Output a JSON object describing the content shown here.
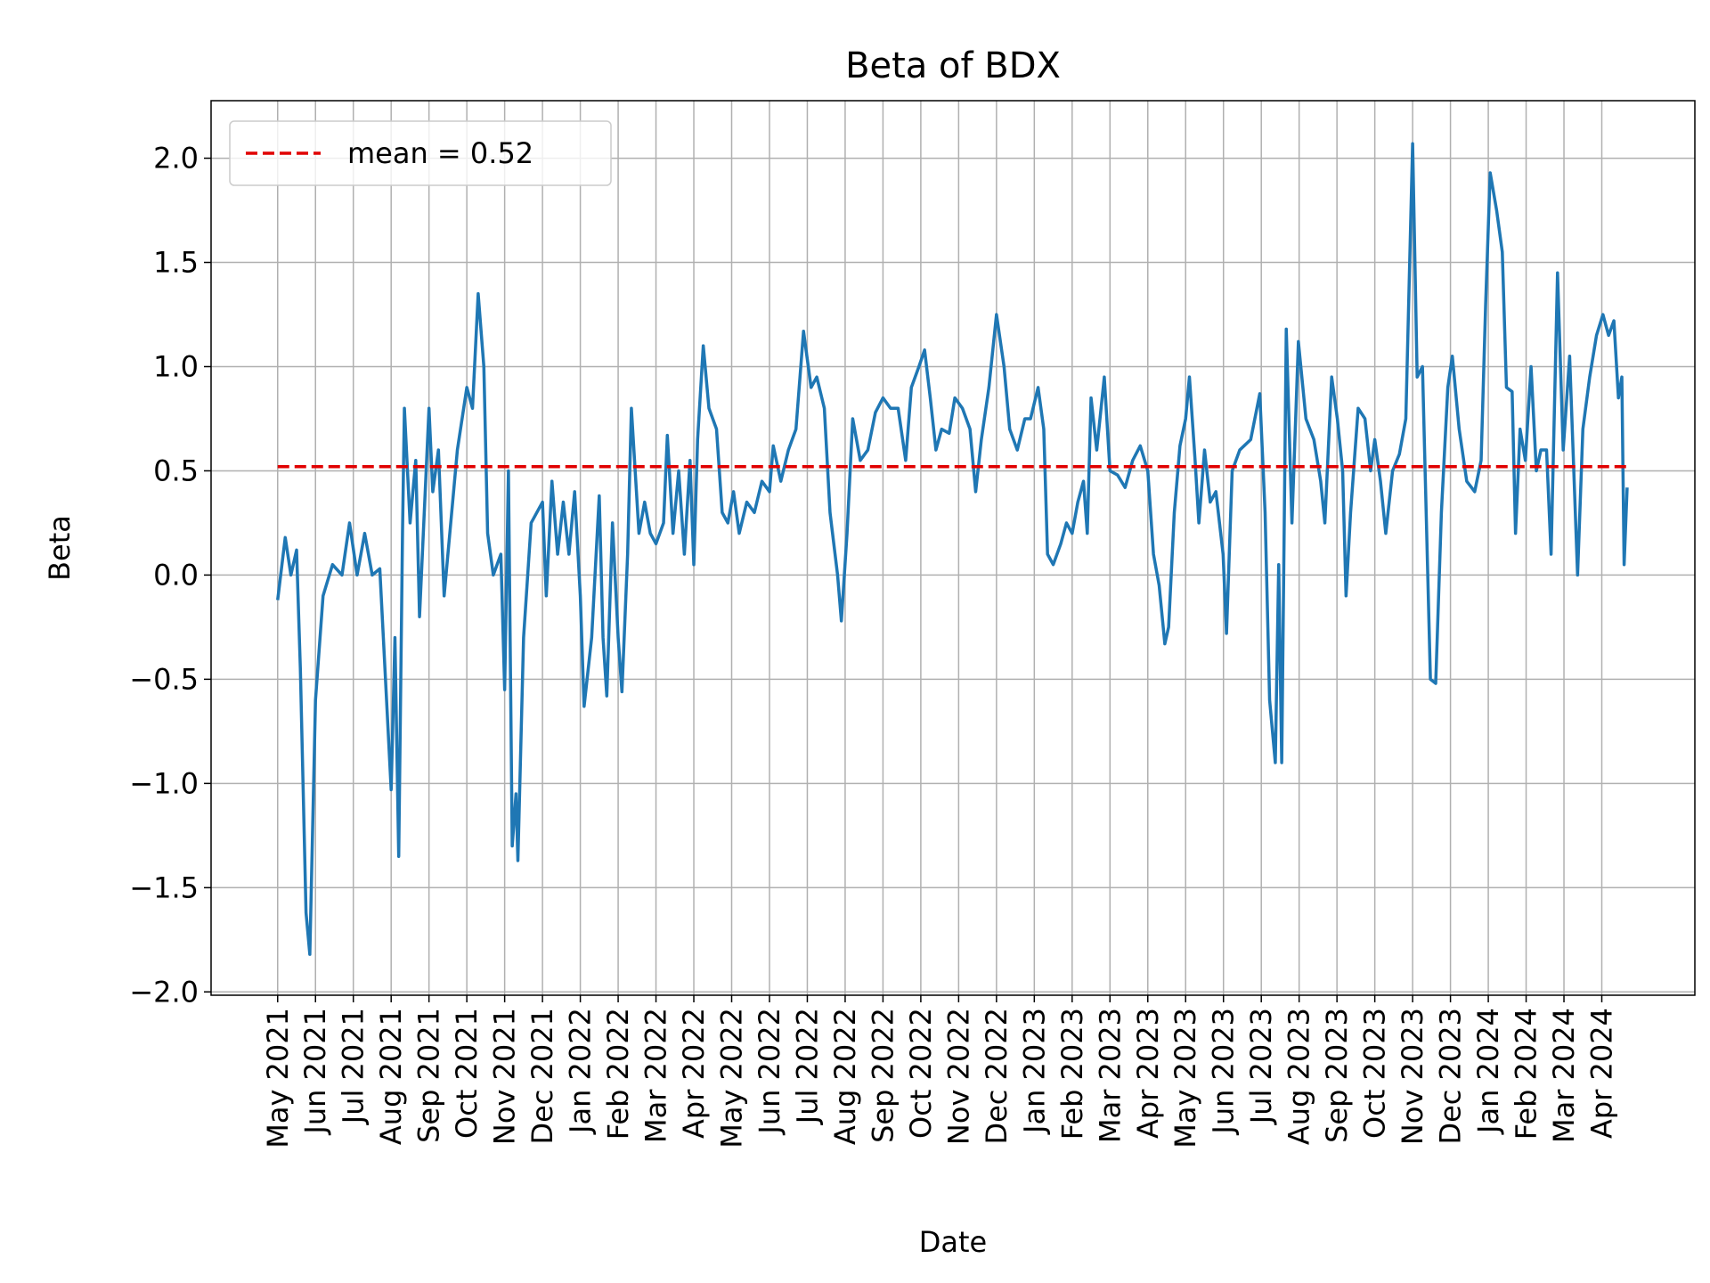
{
  "chart_data": {
    "type": "line",
    "title": "Beta of BDX",
    "xlabel": "Date",
    "ylabel": "Beta",
    "x": [
      0,
      0.2,
      0.35,
      0.5,
      0.6,
      0.75,
      0.85,
      1.0,
      1.2,
      1.45,
      1.7,
      1.9,
      2.1,
      2.3,
      2.5,
      2.7,
      2.85,
      3.0,
      3.1,
      3.2,
      3.3,
      3.35,
      3.5,
      3.65,
      3.75,
      3.85,
      4.0,
      4.1,
      4.25,
      4.4,
      4.55,
      4.75,
      5.0,
      5.15,
      5.3,
      5.45,
      5.55,
      5.7,
      5.9,
      6.0,
      6.1,
      6.2,
      6.3,
      6.35,
      6.5,
      6.7,
      7.0,
      7.1,
      7.25,
      7.4,
      7.55,
      7.7,
      7.85,
      8.0,
      8.1,
      8.3,
      8.5,
      8.6,
      8.7,
      8.85,
      9.0,
      9.1,
      9.25,
      9.35,
      9.55,
      9.7,
      9.85,
      10.0,
      10.2,
      10.3,
      10.45,
      10.6,
      10.75,
      10.9,
      11.0,
      11.1,
      11.25,
      11.4,
      11.6,
      11.75,
      11.9,
      12.05,
      12.2,
      12.4,
      12.6,
      12.8,
      13.0,
      13.1,
      13.3,
      13.5,
      13.7,
      13.9,
      14.1,
      14.25,
      14.45,
      14.6,
      14.8,
      14.9,
      15.05,
      15.2,
      15.4,
      15.6,
      15.8,
      16.0,
      16.2,
      16.4,
      16.6,
      16.75,
      16.95,
      17.1,
      17.25,
      17.4,
      17.55,
      17.75,
      17.9,
      18.1,
      18.3,
      18.45,
      18.6,
      18.8,
      19.0,
      19.2,
      19.35,
      19.55,
      19.75,
      19.9,
      20.1,
      20.25,
      20.35,
      20.5,
      20.7,
      20.85,
      21.0,
      21.15,
      21.3,
      21.4,
      21.5,
      21.65,
      21.85,
      22.0,
      22.2,
      22.4,
      22.6,
      22.8,
      23.0,
      23.15,
      23.3,
      23.45,
      23.55,
      23.7,
      23.85,
      24.0,
      24.1,
      24.25,
      24.35,
      24.5,
      24.65,
      24.8,
      24.99,
      25.08,
      25.23,
      25.43,
      25.72,
      25.96,
      26.1,
      26.22,
      26.37,
      26.46,
      26.54,
      26.66,
      26.81,
      26.98,
      27.18,
      27.39,
      27.57,
      27.68,
      27.86,
      28.01,
      28.15,
      28.24,
      28.36,
      28.56,
      28.74,
      28.89,
      29.0,
      29.15,
      29.29,
      29.47,
      29.65,
      29.82,
      30.0,
      30.12,
      30.26,
      30.47,
      30.61,
      30.76,
      30.93,
      31.05,
      31.23,
      31.43,
      31.64,
      31.81,
      31.93,
      32.05,
      32.22,
      32.37,
      32.48,
      32.63,
      32.72,
      32.84,
      32.98,
      33.13,
      33.27,
      33.39,
      33.54,
      33.66,
      33.83,
      33.98,
      34.15,
      34.36,
      34.5,
      34.68,
      34.86,
      35.03,
      35.18,
      35.32,
      35.44,
      35.53,
      35.59,
      35.67
    ],
    "values": [
      -0.12,
      0.18,
      0.0,
      0.12,
      -0.45,
      -1.62,
      -1.82,
      -0.6,
      -0.1,
      0.05,
      0.0,
      0.25,
      0.0,
      0.2,
      0.0,
      0.03,
      -0.5,
      -1.03,
      -0.3,
      -1.35,
      0.2,
      0.8,
      0.25,
      0.55,
      -0.2,
      0.2,
      0.8,
      0.4,
      0.6,
      -0.1,
      0.2,
      0.6,
      0.9,
      0.8,
      1.35,
      1.0,
      0.2,
      0.0,
      0.1,
      -0.55,
      0.5,
      -1.3,
      -1.05,
      -1.37,
      -0.3,
      0.25,
      0.35,
      -0.1,
      0.45,
      0.1,
      0.35,
      0.1,
      0.4,
      -0.1,
      -0.63,
      -0.3,
      0.38,
      -0.3,
      -0.58,
      0.25,
      -0.3,
      -0.56,
      0.1,
      0.8,
      0.2,
      0.35,
      0.2,
      0.15,
      0.25,
      0.67,
      0.2,
      0.5,
      0.1,
      0.55,
      0.05,
      0.65,
      1.1,
      0.8,
      0.7,
      0.3,
      0.25,
      0.4,
      0.2,
      0.35,
      0.3,
      0.45,
      0.4,
      0.62,
      0.45,
      0.6,
      0.7,
      1.17,
      0.9,
      0.95,
      0.8,
      0.3,
      0.0,
      -0.22,
      0.2,
      0.75,
      0.55,
      0.6,
      0.78,
      0.85,
      0.8,
      0.8,
      0.55,
      0.9,
      1.0,
      1.08,
      0.85,
      0.6,
      0.7,
      0.68,
      0.85,
      0.8,
      0.7,
      0.4,
      0.65,
      0.9,
      1.25,
      1.0,
      0.7,
      0.6,
      0.75,
      0.75,
      0.9,
      0.7,
      0.1,
      0.05,
      0.15,
      0.25,
      0.2,
      0.35,
      0.45,
      0.2,
      0.85,
      0.6,
      0.95,
      0.5,
      0.48,
      0.42,
      0.55,
      0.62,
      0.5,
      0.1,
      -0.05,
      -0.33,
      -0.25,
      0.3,
      0.62,
      0.75,
      0.95,
      0.55,
      0.25,
      0.6,
      0.35,
      0.4,
      0.1,
      -0.28,
      0.5,
      0.6,
      0.65,
      0.87,
      0.3,
      -0.6,
      -0.9,
      0.05,
      -0.9,
      1.18,
      0.25,
      1.12,
      0.75,
      0.65,
      0.45,
      0.25,
      0.95,
      0.75,
      0.5,
      -0.1,
      0.3,
      0.8,
      0.75,
      0.5,
      0.65,
      0.45,
      0.2,
      0.5,
      0.58,
      0.75,
      2.07,
      0.95,
      1.0,
      -0.5,
      -0.52,
      0.3,
      0.9,
      1.05,
      0.7,
      0.45,
      0.4,
      0.55,
      1.3,
      1.93,
      1.75,
      1.55,
      0.9,
      0.88,
      0.2,
      0.7,
      0.55,
      1.0,
      0.5,
      0.6,
      0.6,
      0.1,
      1.45,
      0.6,
      1.05,
      0.0,
      0.7,
      0.95,
      1.15,
      1.25,
      1.15,
      1.22,
      0.85,
      0.95,
      0.05,
      0.42
    ],
    "color": "#1f77b4",
    "mean": {
      "value": 0.52,
      "label": "mean = 0.52",
      "color": "#e00000"
    },
    "xlim": [
      -1.76,
      37.46
    ],
    "ylim": [
      -2.016,
      2.276
    ],
    "xticks": [
      {
        "value": 0,
        "label": "May 2021"
      },
      {
        "value": 1,
        "label": "Jun 2021"
      },
      {
        "value": 2,
        "label": "Jul 2021"
      },
      {
        "value": 3,
        "label": "Aug 2021"
      },
      {
        "value": 4,
        "label": "Sep 2021"
      },
      {
        "value": 5,
        "label": "Oct 2021"
      },
      {
        "value": 6,
        "label": "Nov 2021"
      },
      {
        "value": 7,
        "label": "Dec 2021"
      },
      {
        "value": 8,
        "label": "Jan 2022"
      },
      {
        "value": 9,
        "label": "Feb 2022"
      },
      {
        "value": 10,
        "label": "Mar 2022"
      },
      {
        "value": 11,
        "label": "Apr 2022"
      },
      {
        "value": 12,
        "label": "May 2022"
      },
      {
        "value": 13,
        "label": "Jun 2022"
      },
      {
        "value": 14,
        "label": "Jul 2022"
      },
      {
        "value": 15,
        "label": "Aug 2022"
      },
      {
        "value": 16,
        "label": "Sep 2022"
      },
      {
        "value": 17,
        "label": "Oct 2022"
      },
      {
        "value": 18,
        "label": "Nov 2022"
      },
      {
        "value": 19,
        "label": "Dec 2022"
      },
      {
        "value": 20,
        "label": "Jan 2023"
      },
      {
        "value": 21,
        "label": "Feb 2023"
      },
      {
        "value": 22,
        "label": "Mar 2023"
      },
      {
        "value": 23,
        "label": "Apr 2023"
      },
      {
        "value": 24,
        "label": "May 2023"
      },
      {
        "value": 25,
        "label": "Jun 2023"
      },
      {
        "value": 26,
        "label": "Jul 2023"
      },
      {
        "value": 27,
        "label": "Aug 2023"
      },
      {
        "value": 28,
        "label": "Sep 2023"
      },
      {
        "value": 29,
        "label": "Oct 2023"
      },
      {
        "value": 30,
        "label": "Nov 2023"
      },
      {
        "value": 31,
        "label": "Dec 2023"
      },
      {
        "value": 32,
        "label": "Jan 2024"
      },
      {
        "value": 33,
        "label": "Feb 2024"
      },
      {
        "value": 34,
        "label": "Mar 2024"
      },
      {
        "value": 35,
        "label": "Apr 2024"
      }
    ],
    "yticks": [
      {
        "value": -2,
        "label": "−2.0"
      },
      {
        "value": -1.5,
        "label": "−1.5"
      },
      {
        "value": -1,
        "label": "−1.0"
      },
      {
        "value": -0.5,
        "label": "−0.5"
      },
      {
        "value": 0,
        "label": "0.0"
      },
      0.5,
      {
        "value": 1,
        "label": "1.0"
      },
      1.5,
      {
        "value": 2,
        "label": "2.0"
      }
    ],
    "grid": true,
    "legend": "upper left"
  }
}
